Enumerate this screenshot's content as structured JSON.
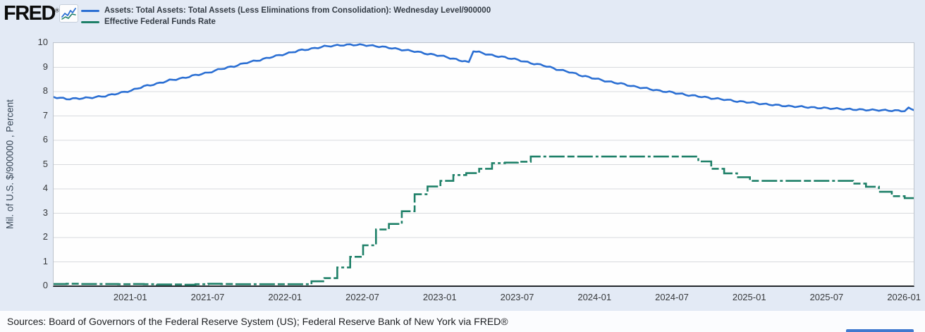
{
  "header": {
    "logo_text": "FRED",
    "logo_registered": "®",
    "chart_icon": "mini-line-chart-icon"
  },
  "legend": [
    {
      "label": "Assets: Total Assets: Total Assets (Less Eliminations from Consolidation): Wednesday Level/900000",
      "color": "#2b6fd3"
    },
    {
      "label": "Effective Federal Funds Rate",
      "color": "#1e8068"
    }
  ],
  "footer": {
    "sources": "Sources: Board of Governors of the Federal Reserve System (US); Federal Reserve Bank of New York via FRED®"
  },
  "colors": {
    "assets_line": "#2b6fd3",
    "effr_line": "#1e8068",
    "gridline": "#d8dadd",
    "background": "#e3eaf5",
    "corner_button": "#4079cf"
  },
  "chart_data": {
    "type": "line",
    "title": "",
    "ylabel": "Mil. of U.S. $/900000 , Percent",
    "xlabel": "",
    "ylim": [
      0,
      10
    ],
    "y_ticks": [
      0,
      1,
      2,
      3,
      4,
      5,
      6,
      7,
      8,
      9,
      10
    ],
    "x_start": "2020-07",
    "x_end_months": 66.7,
    "x_ticks": [
      {
        "m": 6,
        "label": "2021-01"
      },
      {
        "m": 12,
        "label": "2021-07"
      },
      {
        "m": 18,
        "label": "2022-01"
      },
      {
        "m": 24,
        "label": "2022-07"
      },
      {
        "m": 30,
        "label": "2023-01"
      },
      {
        "m": 36,
        "label": "2023-07"
      },
      {
        "m": 42,
        "label": "2024-01"
      },
      {
        "m": 48,
        "label": "2024-07"
      },
      {
        "m": 54,
        "label": "2025-01"
      },
      {
        "m": 60,
        "label": "2025-07"
      },
      {
        "m": 66,
        "label": "2026-01"
      }
    ],
    "grid": true,
    "legend_position": "top-left",
    "series": [
      {
        "name": "Assets: Total Assets: Total Assets (Less Eliminations from Consolidation): Wednesday Level/900000",
        "color": "#2b6fd3",
        "style": "solid",
        "draw": "wiggly-line",
        "x_unit": "months since 2020-07",
        "points": [
          [
            0,
            7.78
          ],
          [
            1,
            7.7
          ],
          [
            2,
            7.72
          ],
          [
            3,
            7.76
          ],
          [
            4,
            7.82
          ],
          [
            5,
            7.93
          ],
          [
            6,
            8.04
          ],
          [
            7,
            8.22
          ],
          [
            8,
            8.32
          ],
          [
            9,
            8.47
          ],
          [
            10,
            8.55
          ],
          [
            11,
            8.68
          ],
          [
            12,
            8.78
          ],
          [
            13,
            8.94
          ],
          [
            14,
            9.04
          ],
          [
            15,
            9.2
          ],
          [
            16,
            9.3
          ],
          [
            17,
            9.44
          ],
          [
            18,
            9.55
          ],
          [
            19,
            9.69
          ],
          [
            20,
            9.76
          ],
          [
            21,
            9.86
          ],
          [
            22,
            9.9
          ],
          [
            23,
            9.93
          ],
          [
            24,
            9.92
          ],
          [
            25,
            9.87
          ],
          [
            26,
            9.81
          ],
          [
            27,
            9.72
          ],
          [
            28,
            9.66
          ],
          [
            29,
            9.55
          ],
          [
            30,
            9.48
          ],
          [
            31,
            9.35
          ],
          [
            31.9,
            9.24
          ],
          [
            32.2,
            9.2
          ],
          [
            32.55,
            9.68
          ],
          [
            33,
            9.62
          ],
          [
            34,
            9.49
          ],
          [
            35,
            9.41
          ],
          [
            36,
            9.31
          ],
          [
            37,
            9.17
          ],
          [
            38,
            9.08
          ],
          [
            39,
            8.92
          ],
          [
            40,
            8.81
          ],
          [
            41,
            8.65
          ],
          [
            42,
            8.54
          ],
          [
            43,
            8.41
          ],
          [
            44,
            8.33
          ],
          [
            45,
            8.21
          ],
          [
            46,
            8.13
          ],
          [
            47,
            8.03
          ],
          [
            48,
            7.97
          ],
          [
            49,
            7.87
          ],
          [
            50,
            7.81
          ],
          [
            51,
            7.73
          ],
          [
            52,
            7.68
          ],
          [
            53,
            7.6
          ],
          [
            54,
            7.56
          ],
          [
            55,
            7.49
          ],
          [
            56,
            7.45
          ],
          [
            57,
            7.4
          ],
          [
            58,
            7.38
          ],
          [
            59,
            7.34
          ],
          [
            60,
            7.32
          ],
          [
            61,
            7.29
          ],
          [
            62,
            7.27
          ],
          [
            63,
            7.25
          ],
          [
            64,
            7.24
          ],
          [
            65,
            7.22
          ],
          [
            66,
            7.21
          ],
          [
            66.3,
            7.32
          ],
          [
            66.5,
            7.28
          ],
          [
            66.7,
            7.27
          ]
        ]
      },
      {
        "name": "Effective Federal Funds Rate",
        "color": "#1e8068",
        "style": "dashed",
        "draw": "step-line",
        "x_unit": "months since 2020-07",
        "points": [
          [
            0,
            0.09
          ],
          [
            1,
            0.1
          ],
          [
            2,
            0.09
          ],
          [
            5,
            0.08
          ],
          [
            6,
            0.09
          ],
          [
            7,
            0.08
          ],
          [
            8,
            0.07
          ],
          [
            10,
            0.06
          ],
          [
            11,
            0.08
          ],
          [
            12,
            0.1
          ],
          [
            13,
            0.09
          ],
          [
            14,
            0.08
          ],
          [
            20,
            0.2
          ],
          [
            21,
            0.33
          ],
          [
            22,
            0.77
          ],
          [
            23,
            1.21
          ],
          [
            24,
            1.68
          ],
          [
            25,
            2.33
          ],
          [
            26,
            2.56
          ],
          [
            27,
            3.08
          ],
          [
            28,
            3.78
          ],
          [
            29,
            4.1
          ],
          [
            30,
            4.33
          ],
          [
            31,
            4.57
          ],
          [
            32,
            4.65
          ],
          [
            33,
            4.83
          ],
          [
            34,
            5.06
          ],
          [
            35,
            5.08
          ],
          [
            36,
            5.12
          ],
          [
            37,
            5.33
          ],
          [
            50,
            5.13
          ],
          [
            51,
            4.83
          ],
          [
            52,
            4.64
          ],
          [
            53,
            4.48
          ],
          [
            54,
            4.33
          ],
          [
            62,
            4.22
          ],
          [
            63,
            4.09
          ],
          [
            64,
            3.88
          ],
          [
            65,
            3.7
          ],
          [
            66,
            3.62
          ]
        ]
      }
    ]
  }
}
